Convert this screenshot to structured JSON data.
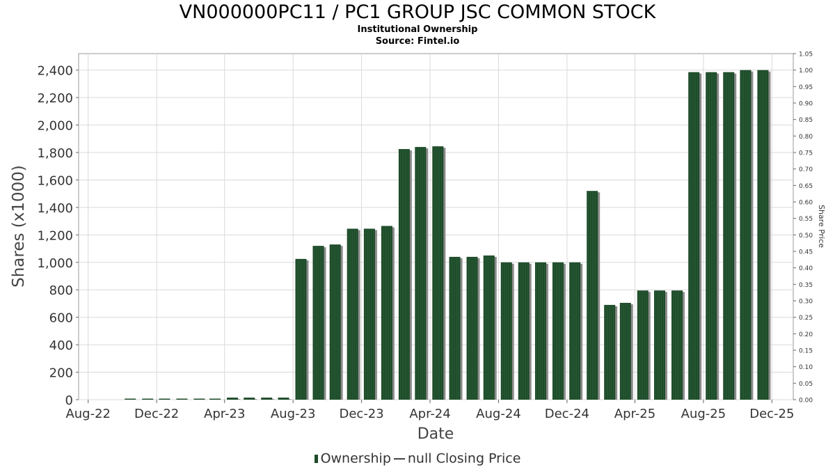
{
  "header": {
    "title": "VN000000PC11 / PC1 GROUP JSC COMMON STOCK",
    "subtitle": "Institutional Ownership",
    "source": "Source: Fintel.io"
  },
  "legend": {
    "ownership_label": "Ownership",
    "price_label": "null Closing Price"
  },
  "colors": {
    "bar": "#1e4a2a",
    "bar_shadow": "#8c8c8c",
    "grid": "#d9d9d9"
  },
  "chart_data": {
    "type": "bar",
    "xlabel": "Date",
    "ylabel": "Shares (x1000)",
    "y2label": "Share Price",
    "ylim": [
      0,
      2520
    ],
    "y2lim": [
      0,
      1.05
    ],
    "yticks": [
      0,
      200,
      400,
      600,
      800,
      1000,
      1200,
      1400,
      1600,
      1800,
      2000,
      2200,
      2400
    ],
    "yticklabels": [
      "0",
      "200",
      "400",
      "600",
      "800",
      "1,000",
      "1,200",
      "1,400",
      "1,600",
      "1,800",
      "2,000",
      "2,200",
      "2,400"
    ],
    "y2ticklabels": [
      "0.00",
      "0.05",
      "0.10",
      "0.15",
      "0.20",
      "0.25",
      "0.30",
      "0.35",
      "0.40",
      "0.45",
      "0.50",
      "0.55",
      "0.60",
      "0.65",
      "0.70",
      "0.75",
      "0.80",
      "0.85",
      "0.90",
      "0.95",
      "1.00",
      "1.05"
    ],
    "xticks": [
      "2022-08-01",
      "2022-12-01",
      "2023-04-01",
      "2023-08-01",
      "2023-12-01",
      "2024-04-01",
      "2024-08-01",
      "2024-12-01",
      "2025-04-01",
      "2025-08-01",
      "2025-12-01"
    ],
    "xticklabels": [
      "Aug-22",
      "Dec-22",
      "Apr-23",
      "Aug-23",
      "Dec-23",
      "Apr-24",
      "Aug-24",
      "Dec-24",
      "Apr-25",
      "Aug-25",
      "Dec-25"
    ],
    "xlim": [
      "2022-07-15",
      "2026-01-08"
    ],
    "grid": true,
    "legend_position": "bottom",
    "series": [
      {
        "name": "Ownership",
        "x": [
          "2022-10-15",
          "2022-11-15",
          "2022-12-15",
          "2023-01-15",
          "2023-02-15",
          "2023-03-15",
          "2023-04-15",
          "2023-05-15",
          "2023-06-15",
          "2023-07-15",
          "2023-08-15",
          "2023-09-15",
          "2023-10-15",
          "2023-11-15",
          "2023-12-15",
          "2024-01-15",
          "2024-02-15",
          "2024-03-15",
          "2024-04-15",
          "2024-05-15",
          "2024-06-15",
          "2024-07-15",
          "2024-08-15",
          "2024-09-15",
          "2024-10-15",
          "2024-11-15",
          "2024-12-15",
          "2025-01-15",
          "2025-02-15",
          "2025-03-15",
          "2025-04-15",
          "2025-05-15",
          "2025-06-15",
          "2025-07-15",
          "2025-08-15",
          "2025-09-15",
          "2025-10-15",
          "2025-11-15"
        ],
        "values": [
          5,
          5,
          5,
          3,
          3,
          3,
          15,
          15,
          15,
          15,
          1025,
          1120,
          1130,
          1245,
          1245,
          1265,
          1825,
          1840,
          1845,
          1040,
          1040,
          1050,
          1000,
          1000,
          1000,
          1000,
          1000,
          1520,
          690,
          705,
          795,
          795,
          795,
          2385,
          2385,
          2385,
          2400,
          2400
        ]
      },
      {
        "name": "null Closing Price",
        "x": [],
        "values": []
      }
    ]
  }
}
